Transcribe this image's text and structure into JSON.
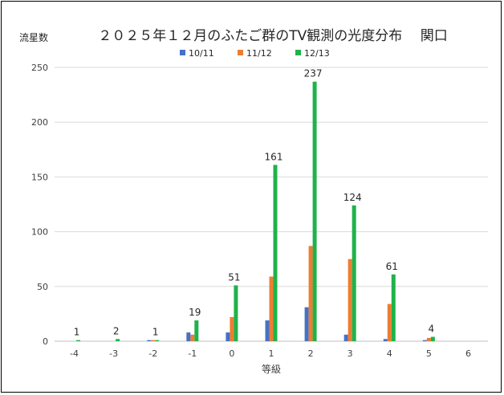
{
  "chart_data": {
    "type": "bar",
    "title": "２０２５年１２月のふたご群のTV観測の光度分布　 関口",
    "ylabel": "流星数",
    "xlabel": "等級",
    "categories": [
      "-4",
      "-3",
      "-2",
      "-1",
      "0",
      "1",
      "2",
      "3",
      "4",
      "5",
      "6"
    ],
    "ylim": [
      0,
      250
    ],
    "yticks": [
      0,
      50,
      100,
      150,
      200,
      250
    ],
    "grid": true,
    "legend_position": "top",
    "series": [
      {
        "name": "10/11",
        "color": "#4472C4",
        "values": [
          0,
          0,
          1,
          8,
          8,
          19,
          31,
          6,
          2,
          1,
          0
        ]
      },
      {
        "name": "11/12",
        "color": "#ED7D31",
        "values": [
          0,
          0,
          1,
          6,
          22,
          59,
          87,
          75,
          34,
          3,
          0
        ]
      },
      {
        "name": "12/13",
        "color": "#1FB24A",
        "values": [
          1,
          2,
          1,
          19,
          51,
          161,
          237,
          124,
          61,
          4,
          0
        ]
      }
    ],
    "data_labels": [
      {
        "category": "-4",
        "value": 1,
        "text": "1"
      },
      {
        "category": "-3",
        "value": 2,
        "text": "2"
      },
      {
        "category": "-2",
        "value": 1,
        "text": "1"
      },
      {
        "category": "-1",
        "value": 19,
        "text": "19"
      },
      {
        "category": "0",
        "value": 51,
        "text": "51"
      },
      {
        "category": "1",
        "value": 161,
        "text": "161"
      },
      {
        "category": "2",
        "value": 237,
        "text": "237"
      },
      {
        "category": "3",
        "value": 124,
        "text": "124"
      },
      {
        "category": "4",
        "value": 61,
        "text": "61"
      },
      {
        "category": "5",
        "value": 4,
        "text": "4"
      }
    ]
  }
}
